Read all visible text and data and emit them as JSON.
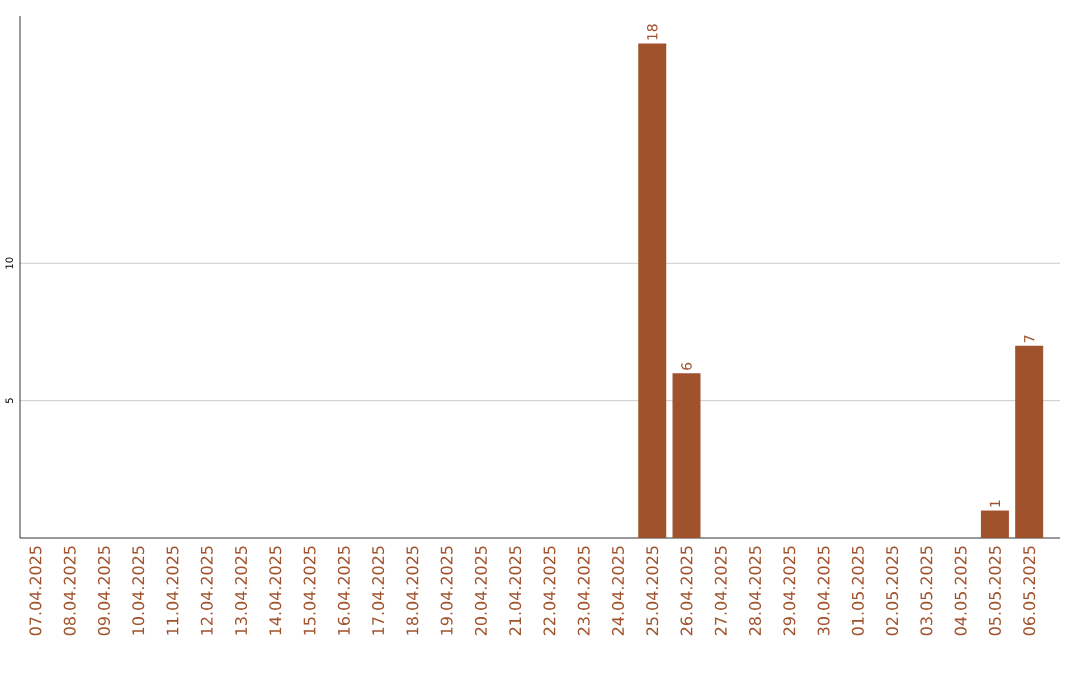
{
  "chart_data": {
    "type": "bar",
    "categories": [
      "07.04.2025",
      "08.04.2025",
      "09.04.2025",
      "10.04.2025",
      "11.04.2025",
      "12.04.2025",
      "13.04.2025",
      "14.04.2025",
      "15.04.2025",
      "16.04.2025",
      "17.04.2025",
      "18.04.2025",
      "19.04.2025",
      "20.04.2025",
      "21.04.2025",
      "22.04.2025",
      "23.04.2025",
      "24.04.2025",
      "25.04.2025",
      "26.04.2025",
      "27.04.2025",
      "28.04.2025",
      "29.04.2025",
      "30.04.2025",
      "01.05.2025",
      "02.05.2025",
      "03.05.2025",
      "04.05.2025",
      "05.05.2025",
      "06.05.2025"
    ],
    "values": [
      0,
      0,
      0,
      0,
      0,
      0,
      0,
      0,
      0,
      0,
      0,
      0,
      0,
      0,
      0,
      0,
      0,
      0,
      18,
      6,
      0,
      0,
      0,
      0,
      0,
      0,
      0,
      0,
      1,
      7
    ],
    "value_labels": [
      null,
      null,
      null,
      null,
      null,
      null,
      null,
      null,
      null,
      null,
      null,
      null,
      null,
      null,
      null,
      null,
      null,
      null,
      "18",
      "6",
      null,
      null,
      null,
      null,
      null,
      null,
      null,
      null,
      "1",
      "7"
    ],
    "color": "#a0522d",
    "ylim": [
      0,
      19
    ],
    "yticks": [
      5,
      10
    ],
    "grid": "y"
  }
}
